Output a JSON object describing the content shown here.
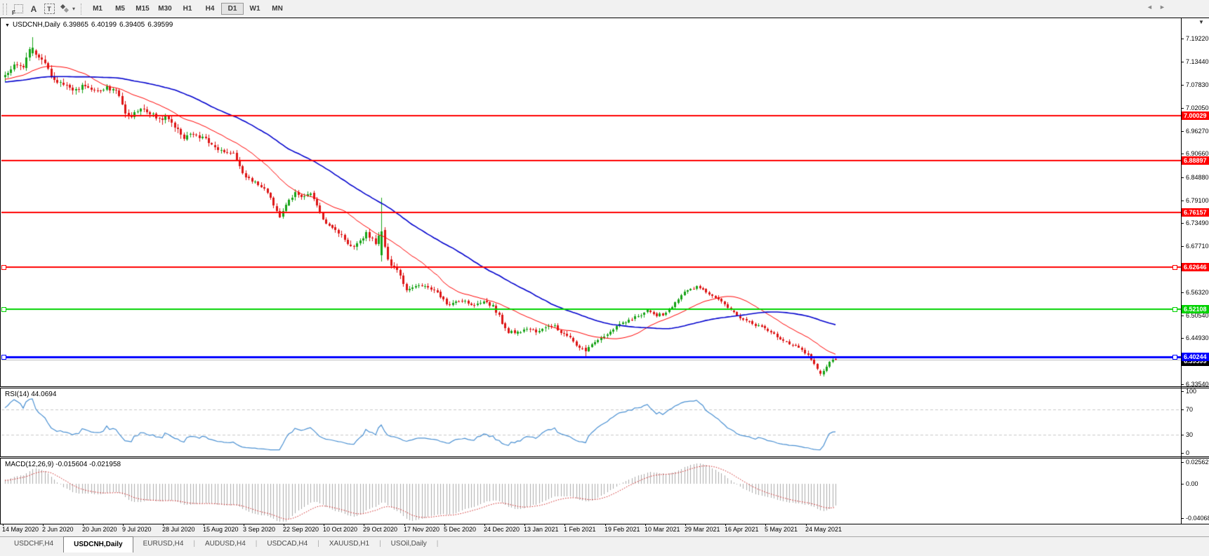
{
  "colors": {
    "up": "#17a317",
    "down": "#dd1414",
    "ma_fast": "#ff0000",
    "ma_slow": "#0000cd",
    "rsi_line": "#4a90d2",
    "rsi_level": "#c8c8c8",
    "macd_hist": "#ababab",
    "macd_signal": "#cc2222",
    "hline_red": "#ff0000",
    "hline_green": "#00d200",
    "hline_blue": "#0000ff",
    "bid_line": "#b8b8b8",
    "bid_badge_bg": "#000000"
  },
  "icons": {
    "chart_shift": "▼",
    "header_dropdown": "▼",
    "tool_caret": "▾"
  },
  "toolbar": {
    "tools": {
      "f": "F",
      "a": "A",
      "t": "T"
    },
    "timeframes": [
      "M1",
      "M5",
      "M15",
      "M30",
      "H1",
      "H4",
      "D1",
      "W1",
      "MN"
    ],
    "active_timeframe": "D1"
  },
  "chart": {
    "header": {
      "symbol_label": "USDCNH,Daily",
      "open": "6.39865",
      "high": "6.40199",
      "low": "6.39405",
      "close": "6.39599"
    }
  },
  "price_axis": {
    "ticks": [
      {
        "label": "7.19220",
        "price": 7.1922
      },
      {
        "label": "7.13440",
        "price": 7.1344
      },
      {
        "label": "7.07830",
        "price": 7.0783
      },
      {
        "label": "7.02050",
        "price": 7.0205
      },
      {
        "label": "6.96270",
        "price": 6.9627
      },
      {
        "label": "6.90660",
        "price": 6.9066
      },
      {
        "label": "6.84880",
        "price": 6.8488
      },
      {
        "label": "6.79100",
        "price": 6.791
      },
      {
        "label": "6.73490",
        "price": 6.7349
      },
      {
        "label": "6.67710",
        "price": 6.6771
      },
      {
        "label": "6.62100",
        "price": 6.621
      },
      {
        "label": "6.56320",
        "price": 6.5632
      },
      {
        "label": "6.50540",
        "price": 6.5054
      },
      {
        "label": "6.44930",
        "price": 6.4493
      },
      {
        "label": "6.39150",
        "price": 6.3915
      },
      {
        "label": "6.33540",
        "price": 6.3354
      }
    ]
  },
  "hlines": [
    {
      "price": 7.00029,
      "label": "7.00029",
      "color_key": "hline_red",
      "thickness": 2,
      "handles": false
    },
    {
      "price": 6.88897,
      "label": "6.88897",
      "color_key": "hline_red",
      "thickness": 2,
      "handles": false
    },
    {
      "price": 6.76157,
      "label": "6.76157",
      "color_key": "hline_red",
      "thickness": 2,
      "handles": false
    },
    {
      "price": 6.62646,
      "label": "6.62646",
      "color_key": "hline_red",
      "thickness": 2,
      "handles": true
    },
    {
      "price": 6.52108,
      "label": "6.52108",
      "color_key": "hline_green",
      "thickness": 2,
      "handles": true
    },
    {
      "price": 6.40244,
      "label": "6.40244",
      "color_key": "hline_blue",
      "thickness": 3,
      "handles": true
    }
  ],
  "bid_badge": {
    "label": "6.39599",
    "price": 6.39599
  },
  "rsi": {
    "label": "RSI(14) 44.0694",
    "ticks": [
      {
        "label": "100",
        "v": 100
      },
      {
        "label": "70",
        "v": 70
      },
      {
        "label": "30",
        "v": 30
      },
      {
        "label": "0",
        "v": 0
      }
    ],
    "levels": [
      70,
      30
    ]
  },
  "macd": {
    "label": "MACD(12,26,9) -0.015604 -0.021958",
    "ticks": [
      {
        "label": "0.02562",
        "v": 0.02562
      },
      {
        "label": "0.00",
        "v": 0
      },
      {
        "label": "-0.04068",
        "v": -0.04068
      }
    ]
  },
  "date_axis": [
    "14 May 2020",
    "2 Jun 2020",
    "20 Jun 2020",
    "9 Jul 2020",
    "28 Jul 2020",
    "15 Aug 2020",
    "3 Sep 2020",
    "22 Sep 2020",
    "10 Oct 2020",
    "29 Oct 2020",
    "17 Nov 2020",
    "5 Dec 2020",
    "24 Dec 2020",
    "13 Jan 2021",
    "1 Feb 2021",
    "19 Feb 2021",
    "10 Mar 2021",
    "29 Mar 2021",
    "16 Apr 2021",
    "5 May 2021",
    "24 May 2021"
  ],
  "tabs": {
    "items": [
      "USDCHF,H4",
      "USDCNH,Daily",
      "EURUSD,H4",
      "AUDUSD,H4",
      "USDCAD,H4",
      "XAUUSD,H1",
      "USOil,Daily"
    ],
    "active": "USDCNH,Daily",
    "separator": "|",
    "nav_left": "◄",
    "nav_right": "►"
  },
  "chart_data": {
    "type": "candlestick",
    "symbol": "USDCNH",
    "timeframe": "Daily",
    "bars": 270,
    "visible_price_range": [
      6.3354,
      7.2426
    ],
    "seed": 13,
    "noise": 0.0045,
    "pre_anchors": [
      [
        -60,
        7.058
      ],
      [
        -45,
        7.092
      ],
      [
        -30,
        7.072
      ],
      [
        -15,
        7.088
      ],
      [
        -1,
        7.096
      ]
    ],
    "anchors": [
      [
        0,
        7.102
      ],
      [
        3,
        7.128
      ],
      [
        6,
        7.118
      ],
      [
        8,
        7.168
      ],
      [
        10,
        7.152
      ],
      [
        13,
        7.128
      ],
      [
        16,
        7.086
      ],
      [
        19,
        7.076
      ],
      [
        23,
        7.066
      ],
      [
        26,
        7.078
      ],
      [
        30,
        7.06
      ],
      [
        33,
        7.07
      ],
      [
        36,
        7.066
      ],
      [
        39,
        7.01
      ],
      [
        41,
        6.998
      ],
      [
        44,
        7.022
      ],
      [
        47,
        7.008
      ],
      [
        50,
        6.99
      ],
      [
        52,
        6.999
      ],
      [
        55,
        6.974
      ],
      [
        58,
        6.946
      ],
      [
        61,
        6.954
      ],
      [
        65,
        6.942
      ],
      [
        68,
        6.924
      ],
      [
        71,
        6.913
      ],
      [
        74,
        6.906
      ],
      [
        78,
        6.845
      ],
      [
        81,
        6.838
      ],
      [
        84,
        6.818
      ],
      [
        87,
        6.78
      ],
      [
        89,
        6.754
      ],
      [
        91,
        6.78
      ],
      [
        94,
        6.814
      ],
      [
        97,
        6.798
      ],
      [
        99,
        6.812
      ],
      [
        101,
        6.778
      ],
      [
        104,
        6.73
      ],
      [
        107,
        6.716
      ],
      [
        110,
        6.694
      ],
      [
        113,
        6.672
      ],
      [
        115,
        6.69
      ],
      [
        117,
        6.71
      ],
      [
        120,
        6.686
      ],
      [
        122,
        6.716
      ],
      [
        124,
        6.64
      ],
      [
        127,
        6.616
      ],
      [
        130,
        6.572
      ],
      [
        133,
        6.582
      ],
      [
        136,
        6.578
      ],
      [
        139,
        6.566
      ],
      [
        141,
        6.554
      ],
      [
        143,
        6.532
      ],
      [
        146,
        6.542
      ],
      [
        149,
        6.538
      ],
      [
        152,
        6.527
      ],
      [
        154,
        6.537
      ],
      [
        156,
        6.539
      ],
      [
        158,
        6.527
      ],
      [
        160,
        6.504
      ],
      [
        163,
        6.462
      ],
      [
        166,
        6.468
      ],
      [
        169,
        6.471
      ],
      [
        172,
        6.464
      ],
      [
        175,
        6.479
      ],
      [
        178,
        6.485
      ],
      [
        180,
        6.461
      ],
      [
        182,
        6.457
      ],
      [
        184,
        6.441
      ],
      [
        186,
        6.427
      ],
      [
        188,
        6.417
      ],
      [
        190,
        6.431
      ],
      [
        193,
        6.451
      ],
      [
        195,
        6.461
      ],
      [
        198,
        6.477
      ],
      [
        200,
        6.489
      ],
      [
        203,
        6.497
      ],
      [
        206,
        6.509
      ],
      [
        208,
        6.519
      ],
      [
        211,
        6.507
      ],
      [
        214,
        6.511
      ],
      [
        217,
        6.539
      ],
      [
        219,
        6.555
      ],
      [
        221,
        6.571
      ],
      [
        224,
        6.577
      ],
      [
        227,
        6.565
      ],
      [
        230,
        6.551
      ],
      [
        232,
        6.537
      ],
      [
        234,
        6.524
      ],
      [
        237,
        6.507
      ],
      [
        240,
        6.491
      ],
      [
        243,
        6.481
      ],
      [
        245,
        6.477
      ],
      [
        247,
        6.469
      ],
      [
        250,
        6.454
      ],
      [
        253,
        6.441
      ],
      [
        256,
        6.431
      ],
      [
        258,
        6.419
      ],
      [
        260,
        6.407
      ],
      [
        262,
        6.384
      ],
      [
        264,
        6.361
      ],
      [
        265,
        6.367
      ],
      [
        266,
        6.379
      ],
      [
        267,
        6.391
      ],
      [
        268,
        6.397
      ],
      [
        269,
        6.396
      ]
    ],
    "overrides": [
      {
        "i": 9,
        "o": 7.155,
        "h": 7.1965,
        "l": 7.148,
        "c": 7.17
      },
      {
        "i": 122,
        "o": 6.655,
        "h": 6.798,
        "l": 6.64,
        "c": 6.715
      },
      {
        "i": 188,
        "o": 6.425,
        "h": 6.432,
        "l": 6.403,
        "c": 6.417
      },
      {
        "i": 264,
        "o": 6.368,
        "h": 6.372,
        "l": 6.3565,
        "c": 6.361
      },
      {
        "i": 269,
        "o": 6.39865,
        "h": 6.40199,
        "l": 6.39405,
        "c": 6.39599
      }
    ],
    "ma_fast_period": 20,
    "ma_slow_period": 55,
    "rsi_period": 14,
    "rsi_last": 44.0694,
    "macd_params": {
      "fast": 12,
      "slow": 26,
      "signal": 9,
      "last_macd": -0.015604,
      "last_signal": -0.021958
    },
    "last_bid": 6.39599
  }
}
